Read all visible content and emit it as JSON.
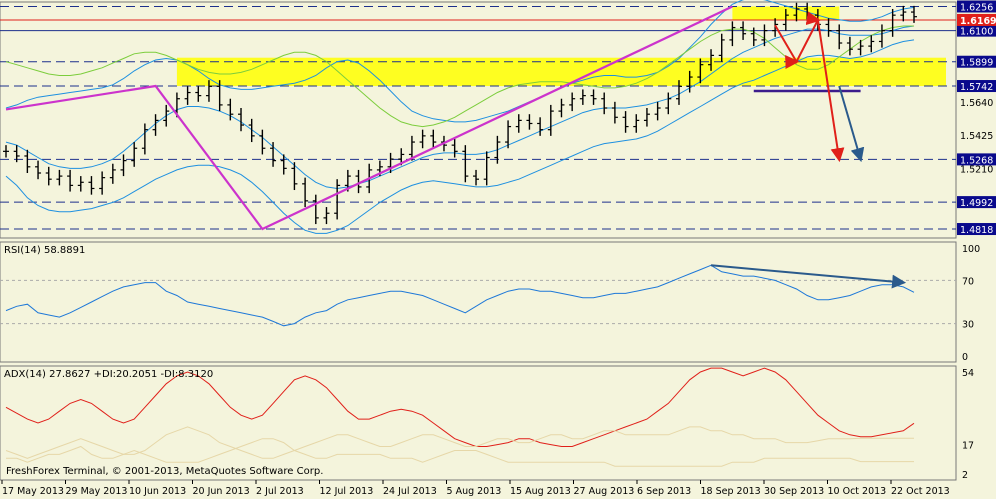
{
  "chart_data": [
    {
      "type": "line",
      "panel": "price",
      "instrument_ohlc_style": "bar",
      "ylim": [
        1.476,
        1.6285
      ],
      "x_ticks": [
        "17 May 2013",
        "29 May 2013",
        "10 Jun 2013",
        "20 Jun 2013",
        "2 Jul 2013",
        "12 Jul 2013",
        "24 Jul 2013",
        "5 Aug 2013",
        "15 Aug 2013",
        "27 Aug 2013",
        "6 Sep 2013",
        "18 Sep 2013",
        "30 Sep 2013",
        "10 Oct 2013",
        "22 Oct 2013"
      ],
      "y_ticks": [
        "1.6256",
        "1.6100",
        "1.5899",
        "1.5742",
        "1.5640",
        "1.5425",
        "1.5268",
        "1.5210",
        "1.4992",
        "1.4818"
      ],
      "y_tick_values": [
        1.6256,
        1.61,
        1.5899,
        1.5742,
        1.564,
        1.5425,
        1.5268,
        1.521,
        1.4992,
        1.4818
      ],
      "price_badges": [
        {
          "label": "1.6256",
          "value": 1.6256,
          "color": "#0a0a8c"
        },
        {
          "label": "1.6169",
          "value": 1.6169,
          "color": "#e0201a"
        },
        {
          "label": "1.6100",
          "value": 1.61,
          "color": "#0a0a8c"
        },
        {
          "label": "1.5899",
          "value": 1.5899,
          "color": "#0a0a8c"
        },
        {
          "label": "1.5742",
          "value": 1.5742,
          "color": "#0a0a8c"
        },
        {
          "label": "1.5268",
          "value": 1.5268,
          "color": "#0a0a8c"
        },
        {
          "label": "1.4992",
          "value": 1.4992,
          "color": "#0a0a8c"
        },
        {
          "label": "1.4818",
          "value": 1.4818,
          "color": "#0a0a8c"
        }
      ],
      "h_levels": [
        {
          "value": 1.6256,
          "style": "dashed",
          "color": "#1c2f8c"
        },
        {
          "value": 1.6169,
          "style": "solid",
          "color": "#e0201a"
        },
        {
          "value": 1.61,
          "style": "solid",
          "color": "#1c2f8c"
        },
        {
          "value": 1.5899,
          "style": "dashed",
          "color": "#1c2f8c"
        },
        {
          "value": 1.5742,
          "style": "dashed",
          "color": "#1c2f8c"
        },
        {
          "value": 1.5268,
          "style": "dashed",
          "color": "#1c2f8c"
        },
        {
          "value": 1.4992,
          "style": "dashed",
          "color": "#1c2f8c"
        },
        {
          "value": 1.4818,
          "style": "dashed",
          "color": "#1c2f8c"
        }
      ],
      "zones": [
        {
          "from": 1.5742,
          "to": 1.5925,
          "color": "#ffff00"
        },
        {
          "from": 1.6169,
          "to": 1.6256,
          "color": "#ffff00"
        }
      ],
      "closes": [
        1.532,
        1.529,
        1.522,
        1.518,
        1.514,
        1.516,
        1.51,
        1.512,
        1.508,
        1.515,
        1.52,
        1.526,
        1.534,
        1.546,
        1.552,
        1.558,
        1.566,
        1.57,
        1.568,
        1.574,
        1.562,
        1.556,
        1.549,
        1.542,
        1.534,
        1.526,
        1.521,
        1.511,
        1.5,
        1.489,
        1.492,
        1.51,
        1.516,
        1.509,
        1.52,
        1.522,
        1.527,
        1.53,
        1.538,
        1.542,
        1.538,
        1.536,
        1.532,
        1.516,
        1.514,
        1.528,
        1.538,
        1.548,
        1.552,
        1.55,
        1.546,
        1.558,
        1.562,
        1.566,
        1.568,
        1.566,
        1.56,
        1.554,
        1.548,
        1.552,
        1.556,
        1.56,
        1.566,
        1.574,
        1.58,
        1.588,
        1.594,
        1.604,
        1.612,
        1.608,
        1.604,
        1.61,
        1.614,
        1.62,
        1.624,
        1.62,
        1.614,
        1.61,
        1.602,
        1.598,
        1.6,
        1.603,
        1.61,
        1.62,
        1.622,
        1.619
      ],
      "series_lines": [
        {
          "name": "",
          "color": "#1e90e0",
          "values": [
            1.538,
            1.536,
            1.532,
            1.528,
            1.524,
            1.522,
            1.521,
            1.521,
            1.522,
            1.524,
            1.527,
            1.532,
            1.538,
            1.544,
            1.55,
            1.555,
            1.559,
            1.561,
            1.561,
            1.56,
            1.558,
            1.555,
            1.551,
            1.546,
            1.541,
            1.535,
            1.529,
            1.523,
            1.517,
            1.512,
            1.509,
            1.508,
            1.509,
            1.511,
            1.513,
            1.516,
            1.519,
            1.522,
            1.525,
            1.528,
            1.53,
            1.531,
            1.531,
            1.53,
            1.53,
            1.531,
            1.533,
            1.536,
            1.539,
            1.542,
            1.545,
            1.548,
            1.551,
            1.554,
            1.557,
            1.559,
            1.56,
            1.56,
            1.56,
            1.561,
            1.562,
            1.564,
            1.566,
            1.569,
            1.573,
            1.577,
            1.582,
            1.587,
            1.592,
            1.596,
            1.599,
            1.602,
            1.605,
            1.607,
            1.609,
            1.611,
            1.611,
            1.61,
            1.608,
            1.607,
            1.607,
            1.607,
            1.608,
            1.61,
            1.612,
            1.613
          ]
        },
        {
          "name": "",
          "color": "#1e90e0",
          "values": [
            1.56,
            1.562,
            1.565,
            1.567,
            1.568,
            1.569,
            1.57,
            1.571,
            1.572,
            1.573,
            1.575,
            1.579,
            1.584,
            1.588,
            1.591,
            1.592,
            1.591,
            1.588,
            1.584,
            1.579,
            1.575,
            1.573,
            1.572,
            1.572,
            1.573,
            1.574,
            1.575,
            1.576,
            1.578,
            1.581,
            1.586,
            1.59,
            1.591,
            1.589,
            1.584,
            1.578,
            1.571,
            1.564,
            1.558,
            1.555,
            1.553,
            1.552,
            1.551,
            1.551,
            1.552,
            1.554,
            1.556,
            1.558,
            1.561,
            1.564,
            1.567,
            1.57,
            1.573,
            1.576,
            1.578,
            1.58,
            1.581,
            1.581,
            1.58,
            1.58,
            1.581,
            1.583,
            1.587,
            1.592,
            1.599,
            1.606,
            1.614,
            1.621,
            1.627,
            1.63,
            1.631,
            1.63,
            1.628,
            1.626,
            1.624,
            1.622,
            1.62,
            1.618,
            1.617,
            1.616,
            1.616,
            1.617,
            1.619,
            1.622,
            1.624,
            1.625
          ]
        },
        {
          "name": "",
          "color": "#1e90e0",
          "values": [
            1.516,
            1.51,
            1.502,
            1.497,
            1.494,
            1.493,
            1.493,
            1.494,
            1.495,
            1.497,
            1.499,
            1.502,
            1.506,
            1.51,
            1.514,
            1.517,
            1.52,
            1.522,
            1.523,
            1.523,
            1.522,
            1.52,
            1.517,
            1.512,
            1.506,
            1.499,
            1.492,
            1.486,
            1.481,
            1.479,
            1.479,
            1.481,
            1.484,
            1.489,
            1.494,
            1.499,
            1.503,
            1.507,
            1.51,
            1.512,
            1.513,
            1.512,
            1.511,
            1.51,
            1.509,
            1.509,
            1.51,
            1.512,
            1.514,
            1.517,
            1.52,
            1.523,
            1.526,
            1.529,
            1.532,
            1.535,
            1.537,
            1.538,
            1.539,
            1.54,
            1.542,
            1.545,
            1.549,
            1.553,
            1.557,
            1.561,
            1.565,
            1.569,
            1.573,
            1.576,
            1.578,
            1.581,
            1.584,
            1.587,
            1.59,
            1.593,
            1.594,
            1.594,
            1.593,
            1.592,
            1.593,
            1.595,
            1.598,
            1.601,
            1.603,
            1.604
          ]
        },
        {
          "name": "",
          "color": "#7ccd3c",
          "values": [
            1.59,
            1.588,
            1.586,
            1.584,
            1.582,
            1.581,
            1.581,
            1.582,
            1.584,
            1.586,
            1.589,
            1.592,
            1.595,
            1.596,
            1.596,
            1.594,
            1.591,
            1.588,
            1.585,
            1.583,
            1.582,
            1.582,
            1.583,
            1.585,
            1.588,
            1.591,
            1.594,
            1.596,
            1.596,
            1.594,
            1.59,
            1.584,
            1.578,
            1.572,
            1.566,
            1.56,
            1.555,
            1.551,
            1.549,
            1.548,
            1.549,
            1.551,
            1.554,
            1.558,
            1.562,
            1.566,
            1.57,
            1.573,
            1.575,
            1.576,
            1.577,
            1.577,
            1.577,
            1.576,
            1.575,
            1.574,
            1.573,
            1.573,
            1.574,
            1.576,
            1.579,
            1.583,
            1.588,
            1.593,
            1.598,
            1.603,
            1.607,
            1.61,
            1.611,
            1.611,
            1.609,
            1.605,
            1.599,
            1.593,
            1.588,
            1.585,
            1.585,
            1.588,
            1.593,
            1.598,
            1.603,
            1.607,
            1.61,
            1.612,
            1.613,
            1.613
          ]
        }
      ],
      "trendlines": [
        {
          "color": "#cc33cc",
          "points": [
            [
              0,
              1.5591
            ],
            [
              14,
              1.5742
            ],
            [
              24,
              1.4818
            ],
            [
              68,
              1.6256
            ]
          ]
        }
      ],
      "projection_arrows": [
        {
          "color": "#e0201a",
          "points": [
            [
              72,
              1.6135
            ],
            [
              74,
              1.5899
            ],
            [
              76,
              1.6169
            ],
            [
              78,
              1.5268
            ]
          ]
        },
        {
          "color": "#2a5a8c",
          "points": [
            [
              78,
              1.5742
            ],
            [
              80,
              1.5268
            ]
          ]
        }
      ],
      "support_segment": {
        "color": "#3c1c8c",
        "from_index": 70,
        "to_index": 80,
        "value": 1.5742
      }
    },
    {
      "type": "line",
      "panel": "RSI",
      "label": "RSI(14) 58.8891",
      "ylim": [
        0,
        100
      ],
      "y_ticks": [
        "100",
        "70",
        "30",
        "0"
      ],
      "y_tick_values": [
        100,
        70,
        30,
        0
      ],
      "levels": [
        70,
        30
      ],
      "series": [
        {
          "name": "",
          "color": "#1e78d8",
          "values": [
            42,
            46,
            48,
            40,
            38,
            36,
            40,
            45,
            50,
            55,
            60,
            64,
            66,
            68,
            68,
            60,
            56,
            50,
            48,
            46,
            44,
            42,
            40,
            38,
            36,
            32,
            28,
            30,
            36,
            40,
            42,
            48,
            52,
            54,
            56,
            58,
            60,
            60,
            58,
            56,
            52,
            48,
            44,
            40,
            46,
            52,
            56,
            60,
            62,
            62,
            60,
            60,
            58,
            56,
            54,
            54,
            56,
            58,
            58,
            60,
            62,
            64,
            68,
            72,
            76,
            80,
            84,
            78,
            76,
            74,
            74,
            72,
            70,
            66,
            62,
            56,
            52,
            52,
            54,
            56,
            60,
            64,
            66,
            66,
            64,
            59
          ]
        }
      ],
      "divergence_arrow": {
        "color": "#2a5a8c",
        "from": [
          66,
          84
        ],
        "to": [
          84,
          68
        ]
      }
    },
    {
      "type": "line",
      "panel": "ADX",
      "label": "ADX(14) 27.8627 +DI:20.2051 -DI:8.3120",
      "ylim": [
        2,
        54
      ],
      "y_ticks": [
        "54",
        "17",
        "2"
      ],
      "y_tick_values": [
        54,
        17,
        2
      ],
      "series": [
        {
          "name": "",
          "color": "#e0201a",
          "values": [
            36,
            33,
            30,
            28,
            30,
            34,
            38,
            40,
            38,
            34,
            30,
            28,
            30,
            36,
            42,
            48,
            52,
            54,
            52,
            48,
            42,
            36,
            32,
            30,
            32,
            38,
            44,
            50,
            52,
            50,
            46,
            40,
            34,
            30,
            30,
            32,
            34,
            35,
            34,
            32,
            28,
            24,
            20,
            18,
            16,
            16,
            17,
            18,
            20,
            20,
            18,
            17,
            16,
            16,
            18,
            20,
            22,
            24,
            26,
            28,
            30,
            34,
            38,
            44,
            50,
            54,
            56,
            56,
            54,
            52,
            54,
            56,
            54,
            50,
            44,
            38,
            32,
            28,
            24,
            22,
            21,
            21,
            22,
            23,
            24,
            27.86
          ]
        },
        {
          "name": "",
          "color": "#e6d7a8",
          "values": [
            14,
            12,
            10,
            12,
            14,
            16,
            18,
            20,
            18,
            16,
            14,
            12,
            12,
            14,
            18,
            22,
            24,
            26,
            24,
            22,
            18,
            16,
            14,
            12,
            10,
            10,
            12,
            14,
            16,
            18,
            20,
            22,
            22,
            20,
            18,
            16,
            16,
            18,
            20,
            22,
            22,
            20,
            18,
            16,
            16,
            18,
            20,
            20,
            18,
            18,
            20,
            22,
            22,
            20,
            20,
            22,
            24,
            24,
            22,
            22,
            22,
            22,
            22,
            24,
            26,
            26,
            24,
            24,
            22,
            22,
            20,
            20,
            20,
            18,
            18,
            18,
            19,
            20,
            20,
            20,
            20.21,
            20.21,
            20.21,
            20.21,
            20.21,
            20.21
          ]
        },
        {
          "name": "",
          "color": "#e6d7a8",
          "values": [
            10,
            10,
            8,
            10,
            12,
            12,
            14,
            16,
            12,
            10,
            10,
            12,
            14,
            12,
            10,
            8,
            8,
            8,
            8,
            10,
            12,
            14,
            16,
            18,
            20,
            20,
            18,
            14,
            12,
            10,
            10,
            12,
            12,
            12,
            12,
            12,
            10,
            10,
            10,
            8,
            10,
            12,
            14,
            14,
            14,
            12,
            10,
            8,
            8,
            8,
            8,
            8,
            8,
            8,
            8,
            8,
            8,
            6,
            6,
            6,
            6,
            6,
            6,
            6,
            6,
            6,
            6,
            6,
            8,
            8,
            8,
            10,
            10,
            10,
            10,
            10,
            10,
            10,
            10,
            10,
            8.31,
            8.31,
            8.31,
            8.31,
            8.31,
            8.31
          ]
        }
      ]
    }
  ],
  "footer": {
    "copyright": "FreshForex Terminal, © 2001-2013, MetaQuotes Software Corp."
  }
}
